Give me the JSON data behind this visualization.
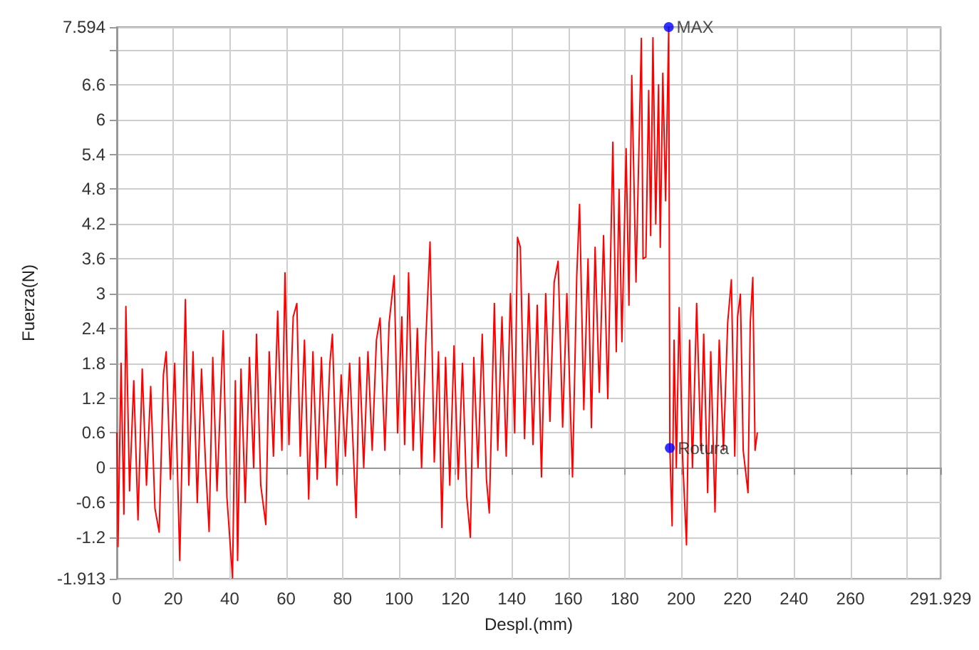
{
  "chart_data": {
    "type": "line",
    "xlabel": "Despl.(mm)",
    "ylabel": "Fuerza(N)",
    "xlim": [
      0,
      291.929
    ],
    "xticks": [
      0,
      20,
      40,
      60,
      80,
      100,
      120,
      140,
      160,
      180,
      200,
      220,
      240,
      260,
      {
        "value": 280,
        "label": null
      },
      291.929
    ],
    "ylim": [
      -1.913,
      7.594
    ],
    "yticks": [
      -1.913,
      -1.2,
      -0.6,
      0,
      0.6,
      1.2,
      1.8,
      2.4,
      3,
      3.6,
      4.2,
      4.8,
      5.4,
      6,
      6.6,
      {
        "value": 7.2,
        "label": null
      },
      7.594
    ],
    "grid": true,
    "marker": "none",
    "line_style": "solid",
    "annotations": [
      {
        "text": "MAX",
        "x": 195.6,
        "y": 7.594
      },
      {
        "text": "Rotura",
        "x": 196,
        "y": 0.34
      }
    ],
    "series": [
      {
        "color": "#ff0000",
        "x": [
          0,
          0.4,
          1.5,
          2.5,
          3.2,
          4.5,
          6,
          7.5,
          9,
          10.5,
          12,
          13.5,
          15,
          16.5,
          17.5,
          19,
          20.5,
          22.3,
          24.3,
          25.5,
          27,
          28.5,
          30,
          31.5,
          32.7,
          34,
          35.5,
          37.7,
          39,
          41,
          42,
          42.8,
          44,
          45.5,
          47,
          48.5,
          49.5,
          51,
          52.8,
          54,
          55.5,
          57,
          58.5,
          59.6,
          61,
          62.5,
          63.8,
          65,
          66.5,
          68,
          69.5,
          71,
          72.5,
          74,
          75.5,
          76.4,
          78,
          79.5,
          81,
          82.5,
          84.8,
          86,
          87.5,
          89,
          90.5,
          92,
          93.3,
          95,
          96.5,
          98.3,
          99.5,
          101,
          102,
          103.4,
          105,
          106.5,
          108,
          109.5,
          111,
          112.5,
          114,
          115.2,
          116.5,
          118,
          119.5,
          121,
          122.5,
          124,
          125.3,
          126.5,
          128,
          129.5,
          131,
          132,
          133.8,
          135,
          136.5,
          138,
          139.5,
          141,
          142,
          143,
          144.5,
          146,
          147.5,
          149,
          150.5,
          152,
          153.5,
          155,
          156.4,
          158,
          159.5,
          161.5,
          163,
          164,
          165.5,
          167,
          168.2,
          169.5,
          171,
          172.5,
          174,
          175.8,
          177,
          178,
          179,
          180.5,
          181.5,
          182.5,
          184,
          185.9,
          186.5,
          187.5,
          188.5,
          189.2,
          190,
          191,
          192,
          192.6,
          193.5,
          194.5,
          195.6,
          196,
          196.8,
          197.5,
          198.3,
          199.3,
          200.5,
          201.9,
          203,
          204,
          205.5,
          207,
          208,
          209.4,
          210.5,
          212,
          213.5,
          215,
          216.5,
          217.8,
          219,
          220,
          221,
          222,
          223.7,
          224.5,
          225.4,
          226.2,
          227
        ],
        "values": [
          0.6,
          -1.36,
          1.8,
          -0.8,
          2.78,
          -0.4,
          1.5,
          -0.9,
          1.7,
          -0.3,
          1.4,
          -0.7,
          -1.11,
          1.6,
          2.0,
          -0.2,
          1.8,
          -1.6,
          2.9,
          -0.3,
          2.0,
          -0.6,
          1.7,
          0.0,
          -1.1,
          1.9,
          -0.4,
          2.36,
          -0.5,
          -1.9,
          1.5,
          -1.6,
          1.7,
          -0.6,
          1.9,
          0.0,
          2.3,
          -0.3,
          -0.98,
          2.0,
          0.2,
          2.7,
          0.3,
          3.36,
          0.4,
          2.6,
          2.83,
          0.2,
          2.2,
          -0.54,
          2.0,
          -0.2,
          1.9,
          0.0,
          1.8,
          2.3,
          -0.3,
          1.6,
          0.2,
          1.8,
          -0.86,
          1.9,
          0.0,
          2.0,
          0.3,
          2.2,
          2.58,
          0.3,
          2.5,
          3.31,
          0.6,
          2.6,
          0.4,
          3.36,
          0.3,
          2.4,
          0.0,
          2.2,
          3.89,
          0.1,
          2.0,
          -1.03,
          1.9,
          -0.3,
          2.1,
          -0.2,
          1.8,
          -0.5,
          -1.2,
          1.9,
          0.0,
          2.3,
          -0.2,
          -0.78,
          2.83,
          0.3,
          2.6,
          0.2,
          3.0,
          0.6,
          3.97,
          3.8,
          0.5,
          3.0,
          0.4,
          2.8,
          -0.16,
          3.0,
          0.8,
          3.2,
          3.56,
          0.7,
          3.0,
          -0.16,
          3.3,
          4.54,
          1.0,
          3.6,
          0.69,
          3.8,
          1.3,
          4.0,
          1.19,
          5.61,
          2.0,
          4.8,
          2.17,
          5.5,
          2.8,
          6.76,
          3.2,
          7.4,
          3.6,
          3.63,
          6.5,
          4.0,
          7.41,
          4.2,
          6.6,
          3.8,
          6.8,
          4.6,
          7.594,
          0.34,
          -1.0,
          2.2,
          0.0,
          2.76,
          0.2,
          -1.33,
          2.2,
          0.0,
          2.83,
          0.3,
          2.3,
          -0.43,
          2.0,
          -0.76,
          2.2,
          0.3,
          2.5,
          3.24,
          0.2,
          2.6,
          2.99,
          0.3,
          -0.43,
          2.5,
          3.28,
          0.3,
          0.6
        ]
      }
    ]
  }
}
